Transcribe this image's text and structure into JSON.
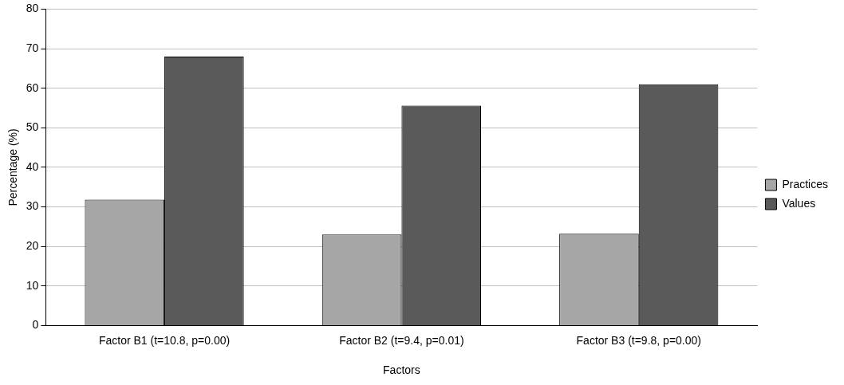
{
  "chart_data": {
    "type": "bar",
    "xlabel": "Factors",
    "ylabel": "Percentage (%)",
    "categories": [
      "Factor B1 (t=10.8, p=0.00)",
      "Factor B2 (t=9.4, p=0.01)",
      "Factor B3 (t=9.8, p=0.00)"
    ],
    "series": [
      {
        "name": "Practices",
        "color": "#a6a6a6",
        "values": [
          31.8,
          23,
          23.2
        ]
      },
      {
        "name": "Values",
        "color": "#5a5a5a",
        "values": [
          68,
          55.6,
          61
        ]
      }
    ],
    "ylim": [
      0,
      80
    ],
    "yticks": [
      0,
      10,
      20,
      30,
      40,
      50,
      60,
      70,
      80
    ],
    "grid": "y",
    "legend": "right"
  }
}
